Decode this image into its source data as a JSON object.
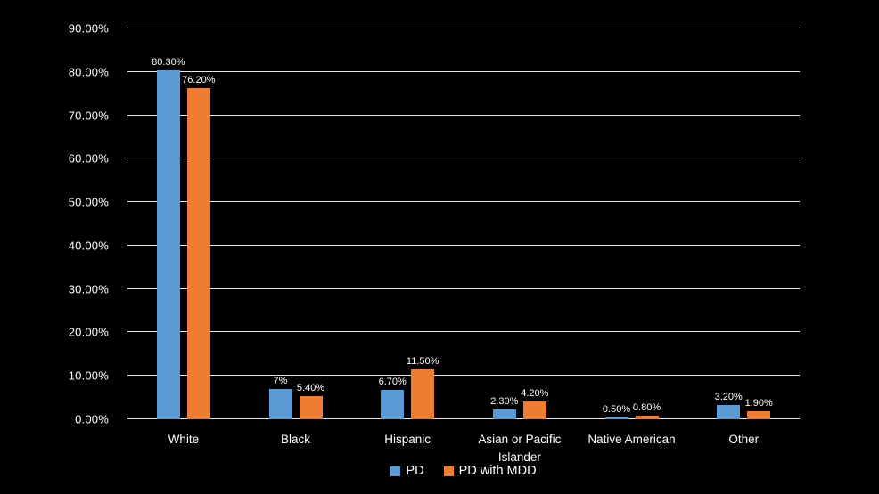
{
  "chart_data": {
    "type": "bar",
    "title": "",
    "xlabel": "",
    "ylabel": "",
    "categories": [
      "White",
      "Black",
      "Hispanic",
      "Asian or Pacific Islander",
      "Native American",
      "Other"
    ],
    "series": [
      {
        "name": "PD",
        "color": "#5B9BD5",
        "values": [
          80.3,
          7,
          6.7,
          2.3,
          0.5,
          3.2
        ],
        "labels": [
          "80.30%",
          "7%",
          "6.70%",
          "2.30%",
          "0.50%",
          "3.20%"
        ]
      },
      {
        "name": "PD with MDD",
        "color": "#ED7D31",
        "values": [
          76.2,
          5.4,
          11.5,
          4.2,
          0.8,
          1.9
        ],
        "labels": [
          "76.20%",
          "5.40%",
          "11.50%",
          "4.20%",
          "0.80%",
          "1.90%"
        ]
      }
    ],
    "ylim": [
      0,
      90
    ],
    "yticks": [
      {
        "value": 0,
        "label": "0.00%"
      },
      {
        "value": 10,
        "label": "10.00%"
      },
      {
        "value": 20,
        "label": "20.00%"
      },
      {
        "value": 30,
        "label": "30.00%"
      },
      {
        "value": 40,
        "label": "40.00%"
      },
      {
        "value": 50,
        "label": "50.00%"
      },
      {
        "value": 60,
        "label": "60.00%"
      },
      {
        "value": 70,
        "label": "70.00%"
      },
      {
        "value": 80,
        "label": "80.00%"
      },
      {
        "value": 90,
        "label": "90.00%"
      }
    ],
    "grid": true,
    "legend_position": "bottom",
    "colors": {
      "background": "#000000",
      "text": "#FFFFFF",
      "gridline": "#E8E8E8"
    }
  }
}
